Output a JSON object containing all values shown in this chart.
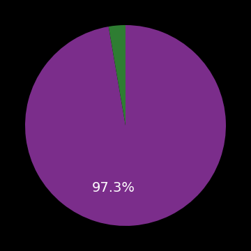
{
  "slices": [
    97.3,
    2.7
  ],
  "colors": [
    "#7B2D8B",
    "#2E7D32"
  ],
  "label": "97.3%",
  "label_color": "#ffffff",
  "label_fontsize": 14,
  "background_color": "#000000",
  "startangle": 90,
  "figsize": [
    3.6,
    3.6
  ],
  "dpi": 100
}
